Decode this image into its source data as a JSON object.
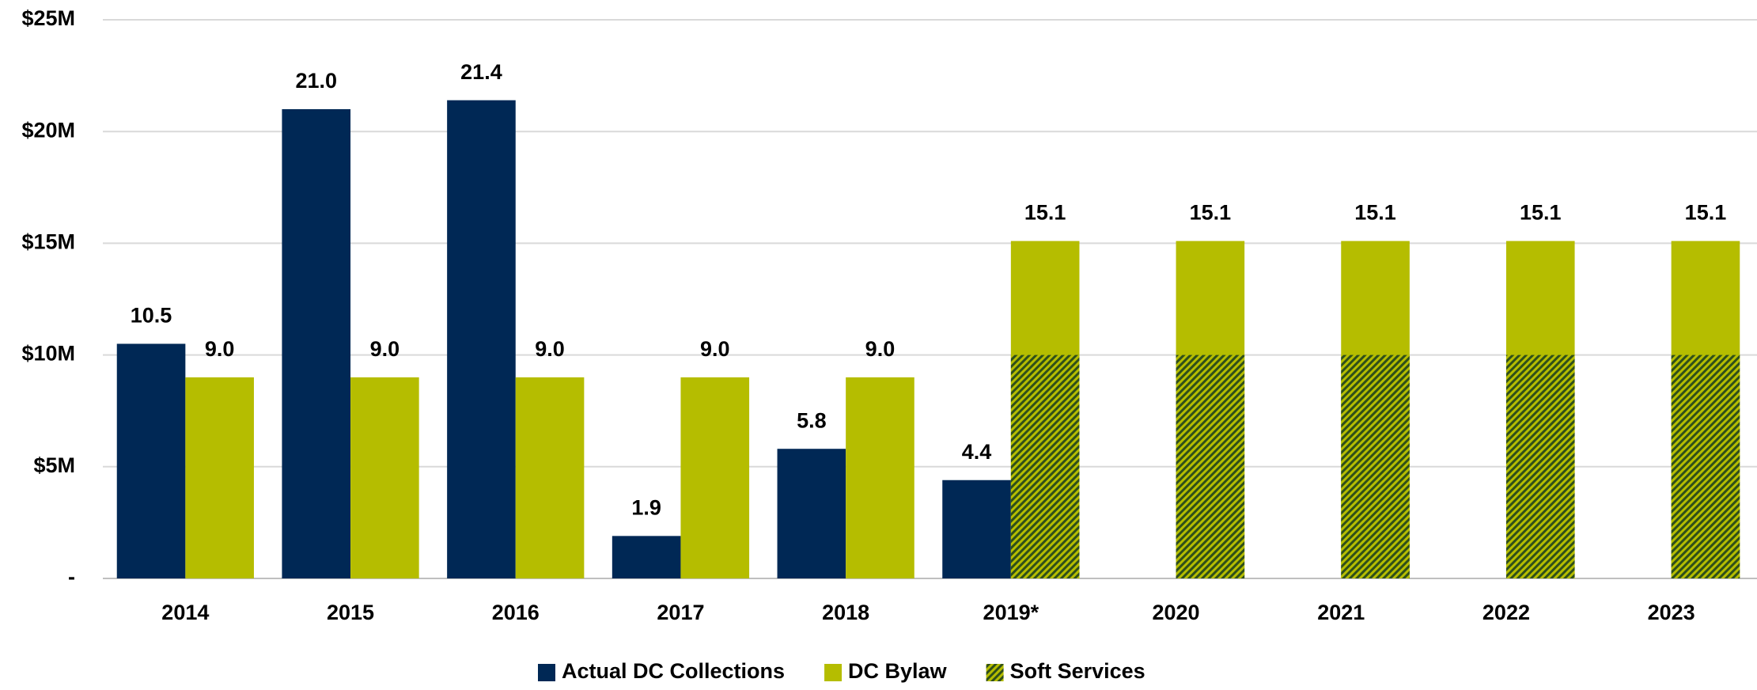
{
  "chart_data": {
    "type": "bar",
    "categories": [
      "2014",
      "2015",
      "2016",
      "2017",
      "2018",
      "2019*",
      "2020",
      "2021",
      "2022",
      "2023"
    ],
    "series": [
      {
        "name": "Actual DC Collections",
        "color": "#002855",
        "values": [
          10.5,
          21.0,
          21.4,
          1.9,
          5.8,
          4.4,
          null,
          null,
          null,
          null
        ],
        "value_labels": [
          "10.5",
          "21.0",
          "21.4",
          "1.9",
          "5.8",
          "4.4",
          null,
          null,
          null,
          null
        ]
      },
      {
        "name": "DC Bylaw",
        "color": "#b5bd00",
        "values": [
          9.0,
          9.0,
          9.0,
          9.0,
          9.0,
          15.1,
          15.1,
          15.1,
          15.1,
          15.1
        ],
        "value_labels": [
          "9.0",
          "9.0",
          "9.0",
          "9.0",
          "9.0",
          "15.1",
          "15.1",
          "15.1",
          "15.1",
          "15.1"
        ]
      },
      {
        "name": "Soft Services",
        "color": "#2f4f1a",
        "values": [
          null,
          null,
          null,
          null,
          null,
          10,
          10,
          10,
          10,
          10
        ]
      }
    ],
    "ylim": [
      0,
      25
    ],
    "yticks": [
      {
        "value": 0,
        "label": "-"
      },
      {
        "value": 5,
        "label": "$5M"
      },
      {
        "value": 10,
        "label": "$10M"
      },
      {
        "value": 15,
        "label": "$15M"
      },
      {
        "value": 20,
        "label": "$20M"
      },
      {
        "value": 25,
        "label": "$25M"
      }
    ],
    "grid": true,
    "legend": "bottom"
  }
}
